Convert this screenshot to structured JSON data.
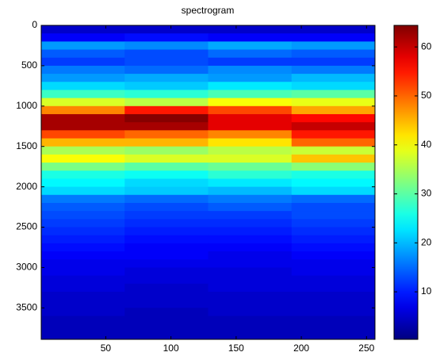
{
  "chart_data": {
    "type": "heatmap",
    "title": "spectrogram",
    "colormap": "jet",
    "x_bins": [
      0.5,
      64.5,
      128.5,
      192.5,
      256.5
    ],
    "y_bins": [
      0,
      100,
      200,
      300,
      400,
      500,
      600,
      700,
      800,
      900,
      1000,
      1100,
      1200,
      1300,
      1400,
      1500,
      1600,
      1700,
      1800,
      1900,
      2000,
      2100,
      2200,
      2300,
      2400,
      2500,
      2600,
      2700,
      2800,
      2900,
      3000,
      3100,
      3200,
      3300,
      3400,
      3500,
      3600,
      3700,
      3800,
      3890
    ],
    "values": [
      [
        5,
        5,
        5,
        5
      ],
      [
        8,
        9,
        8,
        8
      ],
      [
        18,
        17,
        19,
        18
      ],
      [
        14,
        13,
        15,
        14
      ],
      [
        12,
        13,
        12,
        12
      ],
      [
        16,
        15,
        17,
        16
      ],
      [
        18,
        19,
        18,
        20
      ],
      [
        22,
        21,
        23,
        22
      ],
      [
        28,
        27,
        29,
        30
      ],
      [
        38,
        36,
        40,
        39
      ],
      [
        48,
        55,
        52,
        46
      ],
      [
        62,
        64,
        58,
        56
      ],
      [
        62,
        62,
        58,
        60
      ],
      [
        52,
        50,
        48,
        55
      ],
      [
        45,
        45,
        42,
        50
      ],
      [
        35,
        34,
        36,
        37
      ],
      [
        40,
        38,
        38,
        44
      ],
      [
        32,
        30,
        31,
        33
      ],
      [
        26,
        25,
        27,
        26
      ],
      [
        24,
        22,
        23,
        24
      ],
      [
        22,
        21,
        20,
        22
      ],
      [
        16,
        15,
        16,
        15
      ],
      [
        14,
        13,
        14,
        13
      ],
      [
        13,
        12,
        12,
        13
      ],
      [
        12,
        11,
        11,
        12
      ],
      [
        11,
        10,
        10,
        11
      ],
      [
        10,
        9,
        9,
        10
      ],
      [
        9,
        8,
        8,
        9
      ],
      [
        8,
        8,
        7,
        8
      ],
      [
        7,
        7,
        7,
        7
      ],
      [
        7,
        6,
        6,
        7
      ],
      [
        6,
        6,
        6,
        6
      ],
      [
        6,
        5,
        6,
        6
      ],
      [
        5,
        5,
        5,
        5
      ],
      [
        5,
        5,
        5,
        5
      ],
      [
        5,
        4,
        5,
        5
      ],
      [
        4,
        4,
        4,
        4
      ],
      [
        4,
        4,
        4,
        4
      ],
      [
        4,
        4,
        4,
        4
      ]
    ],
    "xlim": [
      0.5,
      256.5
    ],
    "xticks": [
      50,
      100,
      150,
      200,
      250
    ],
    "ylim": [
      0,
      3890
    ],
    "yticks": [
      0,
      500,
      1000,
      1500,
      2000,
      2500,
      3000,
      3500
    ],
    "y_reversed": true,
    "clim": [
      0.3,
      64.4
    ],
    "cticks": [
      10,
      20,
      30,
      40,
      50,
      60
    ]
  }
}
